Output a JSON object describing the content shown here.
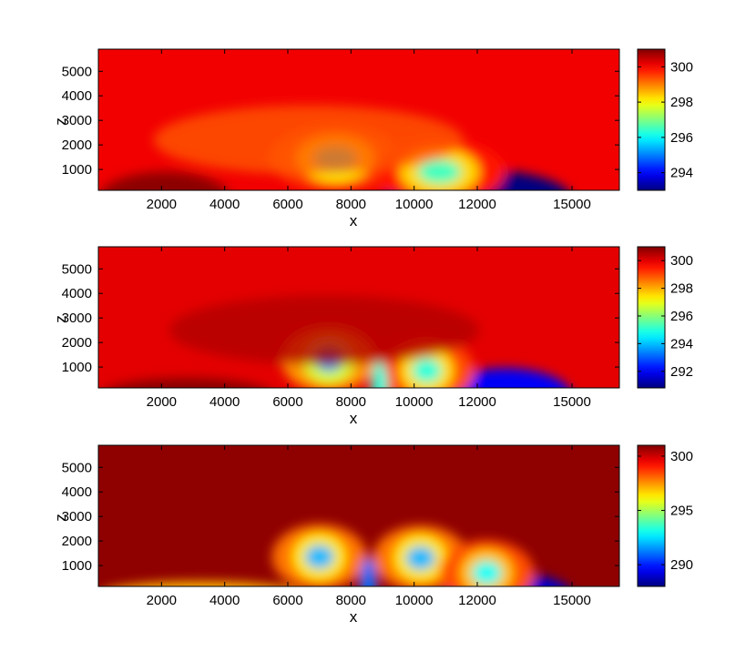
{
  "chart_data": [
    {
      "type": "heatmap",
      "xlabel": "x",
      "ylabel": "z",
      "xlim": [
        0,
        16500
      ],
      "ylim": [
        150,
        5900
      ],
      "xticks": [
        "2000",
        "4000",
        "6000",
        "8000",
        "10000",
        "12000",
        "15000"
      ],
      "xtick_values": [
        2000,
        4000,
        6000,
        8000,
        10000,
        12000,
        15000
      ],
      "yticks": [
        "1000",
        "2000",
        "3000",
        "4000",
        "5000"
      ],
      "ytick_values": [
        1000,
        2000,
        3000,
        4000,
        5000
      ],
      "colorbar": {
        "range": [
          293,
          301
        ],
        "ticks": [
          "294",
          "296",
          "298",
          "300"
        ],
        "tick_values": [
          294,
          296,
          298,
          300
        ]
      },
      "background_value": 300.1,
      "features": [
        {
          "kind": "warm_surface_layer",
          "x_range": [
            0,
            4200
          ],
          "z_range": [
            150,
            900
          ],
          "value": 300.9
        },
        {
          "kind": "cold_pool",
          "x_range": [
            9000,
            15000
          ],
          "z_range": [
            150,
            1000
          ],
          "value": 293
        },
        {
          "kind": "vortex",
          "x": 7500,
          "z": 1450,
          "value": 296
        },
        {
          "kind": "vortex",
          "x": 10800,
          "z": 900,
          "value": 296.5
        },
        {
          "kind": "anomaly",
          "x": 5500,
          "z": 2500,
          "value": 299.3
        }
      ]
    },
    {
      "type": "heatmap",
      "xlabel": "x",
      "ylabel": "z",
      "xlim": [
        0,
        16500
      ],
      "ylim": [
        150,
        5900
      ],
      "xticks": [
        "2000",
        "4000",
        "6000",
        "8000",
        "10000",
        "12000",
        "15000"
      ],
      "xtick_values": [
        2000,
        4000,
        6000,
        8000,
        10000,
        12000,
        15000
      ],
      "yticks": [
        "1000",
        "2000",
        "3000",
        "4000",
        "5000"
      ],
      "ytick_values": [
        1000,
        2000,
        3000,
        4000,
        5000
      ],
      "colorbar": {
        "range": [
          290.8,
          301
        ],
        "ticks": [
          "292",
          "294",
          "296",
          "298",
          "300"
        ],
        "tick_values": [
          292,
          294,
          296,
          298,
          300
        ]
      },
      "background_value": 300.0,
      "features": [
        {
          "kind": "warm_surface_layer",
          "x_range": [
            0,
            5600
          ],
          "z_range": [
            150,
            550
          ],
          "value": 300.9
        },
        {
          "kind": "cold_pool",
          "x_range": [
            10800,
            15000
          ],
          "z_range": [
            150,
            950
          ],
          "value": 292
        },
        {
          "kind": "vortex",
          "x": 7300,
          "z": 1300,
          "value": 293.5
        },
        {
          "kind": "vortex",
          "x": 10400,
          "z": 850,
          "value": 295
        },
        {
          "kind": "plume",
          "x": 8900,
          "z": 500,
          "value": 295
        },
        {
          "kind": "anomaly",
          "x": 6000,
          "z": 2800,
          "value": 300.5
        }
      ]
    },
    {
      "type": "heatmap",
      "xlabel": "x",
      "ylabel": "z",
      "xlim": [
        0,
        16500
      ],
      "ylim": [
        150,
        5900
      ],
      "xticks": [
        "2000",
        "4000",
        "6000",
        "8000",
        "10000",
        "12000",
        "15000"
      ],
      "xtick_values": [
        2000,
        4000,
        6000,
        8000,
        10000,
        12000,
        15000
      ],
      "yticks": [
        "1000",
        "2000",
        "3000",
        "4000",
        "5000"
      ],
      "yticks_values_note": "",
      "ytick_values": [
        1000,
        2000,
        3000,
        4000,
        5000
      ],
      "colorbar": {
        "range": [
          288,
          301
        ],
        "ticks": [
          "290",
          "295",
          "300"
        ],
        "tick_values": [
          290,
          295,
          300
        ]
      },
      "background_value": 300.8,
      "features": [
        {
          "kind": "warm_surface_layer",
          "x_range": [
            0,
            6500
          ],
          "z_range": [
            150,
            350
          ],
          "value": 297
        },
        {
          "kind": "cold_pool",
          "x_range": [
            11000,
            15000
          ],
          "z_range": [
            150,
            700
          ],
          "value": 289
        },
        {
          "kind": "vortex",
          "x": 7000,
          "z": 1350,
          "value": 292
        },
        {
          "kind": "vortex",
          "x": 10200,
          "z": 1300,
          "value": 292
        },
        {
          "kind": "vortex",
          "x": 12300,
          "z": 700,
          "value": 293
        },
        {
          "kind": "plume",
          "x": 8550,
          "z": 600,
          "value": 291
        }
      ]
    }
  ]
}
